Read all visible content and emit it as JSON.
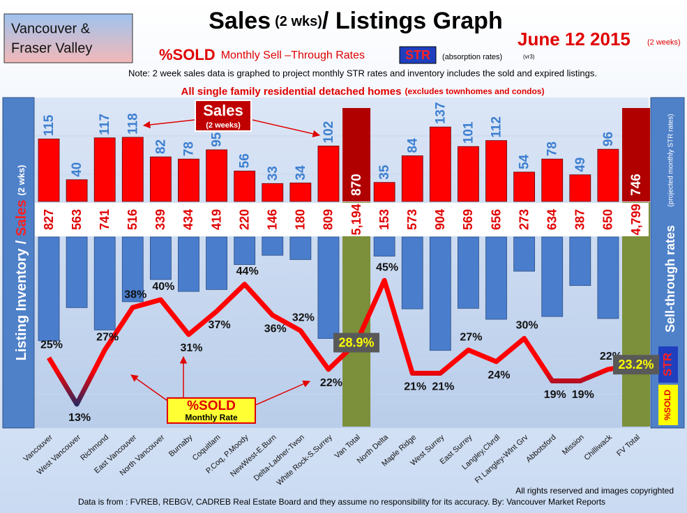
{
  "header": {
    "region_box": [
      "Vancouver &",
      "Fraser Valley"
    ],
    "title": [
      "Sales",
      "(2 wks)",
      "/ Listings Graph"
    ],
    "date": "June 12 2015",
    "date_note": "(2 weeks)",
    "subtitle": [
      "%SOLD",
      "Monthly Sell –Through Rates",
      "STR",
      "(absorption rates)",
      "(vr3)"
    ],
    "note": "Note: 2 week sales data is graphed to project monthly STR rates and inventory includes the sold and expired listings.",
    "scope": [
      "All single family residential detached homes",
      "(excludes townhomes and condos)"
    ]
  },
  "chart_data": {
    "type": "combo",
    "categories": [
      "Vancouver",
      "West Vancouver",
      "Richmond",
      "East Vancouver",
      "North Vancouver",
      "Burnaby",
      "Coquitlam",
      "P.Coq, P.Moody",
      "NewWest-E.Burn",
      "Delta-Ladner-Twsn",
      "White Rock-S.Surrey",
      "Van Total",
      "North Delta",
      "Maple Ridge",
      "West Surrey",
      "East Surrey",
      "Langley,Clvrdl",
      "Ft Langley-Wlnt Grv",
      "Abbotsford",
      "Mission",
      "Chilliwack",
      "FV Total"
    ],
    "series": [
      {
        "name": "Sales",
        "color": "#ff0000",
        "values": [
          115,
          40,
          117,
          118,
          82,
          78,
          95,
          56,
          33,
          34,
          102,
          870,
          35,
          84,
          137,
          101,
          112,
          54,
          78,
          49,
          96,
          746
        ]
      },
      {
        "name": "Listing Inventory",
        "color": "#4a7dcc",
        "values": [
          827,
          563,
          741,
          516,
          339,
          434,
          419,
          220,
          146,
          180,
          809,
          5194,
          153,
          573,
          904,
          569,
          656,
          273,
          634,
          387,
          650,
          4799
        ],
        "value_labels": [
          "827",
          "563",
          "741",
          "516",
          "339",
          "434",
          "419",
          "220",
          "146",
          "180",
          "809",
          "5,194",
          "153",
          "573",
          "904",
          "569",
          "656",
          "273",
          "634",
          "387",
          "650",
          "4,799"
        ]
      },
      {
        "name": "%SOLD",
        "color": "#ff0000",
        "values": [
          25,
          13,
          27,
          38,
          40,
          31,
          37,
          44,
          36,
          32,
          22,
          28.9,
          45,
          21,
          21,
          27,
          24,
          30,
          19,
          19,
          22,
          23.2
        ],
        "value_labels": [
          "25%",
          "13%",
          "27%",
          "38%",
          "40%",
          "31%",
          "37%",
          "44%",
          "36%",
          "32%",
          "22%",
          "28.9%",
          "45%",
          "21%",
          "21%",
          "27%",
          "24%",
          "30%",
          "19%",
          "19%",
          "22%",
          "23.2%"
        ]
      }
    ],
    "y_label_sep": "/",
    "y_label_unit": "(2 wks)",
    "sales_callout_note": "(2 weeks)",
    "sold_callout": [
      "%SOLD",
      "Monthly Rate"
    ],
    "right_label": [
      "Sell-through rates",
      "(projected monthly STR rates)",
      "STR",
      "%SOLD"
    ]
  },
  "footer": {
    "rights": "All rights reserved and  images copyrighted",
    "source": "Data is from : FVREB, REBGV, CADREB Real Estate Board and they assume no responsibility for its accuracy. By: Vancouver Market Reports"
  }
}
